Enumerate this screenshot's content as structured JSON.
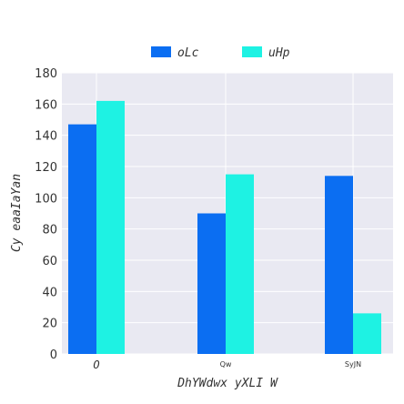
{
  "chart_data": {
    "type": "bar",
    "categories": [
      "O",
      "Qw",
      "SyJN"
    ],
    "series": [
      {
        "name": "oLc",
        "color": "#0b6ef2",
        "values": [
          147,
          90,
          114
        ]
      },
      {
        "name": "uHp",
        "color": "#1ef2e3",
        "values": [
          162,
          115,
          26
        ]
      }
    ],
    "xlabel": "DhYWdwx yXLI W",
    "ylabel": "Cy eaaIaYan",
    "ylim": [
      0,
      180
    ],
    "yticks": [
      0,
      20,
      40,
      60,
      80,
      100,
      120,
      140,
      160,
      180
    ],
    "grid": true,
    "legend_position": "top-center",
    "background": "#e9e9f2"
  }
}
